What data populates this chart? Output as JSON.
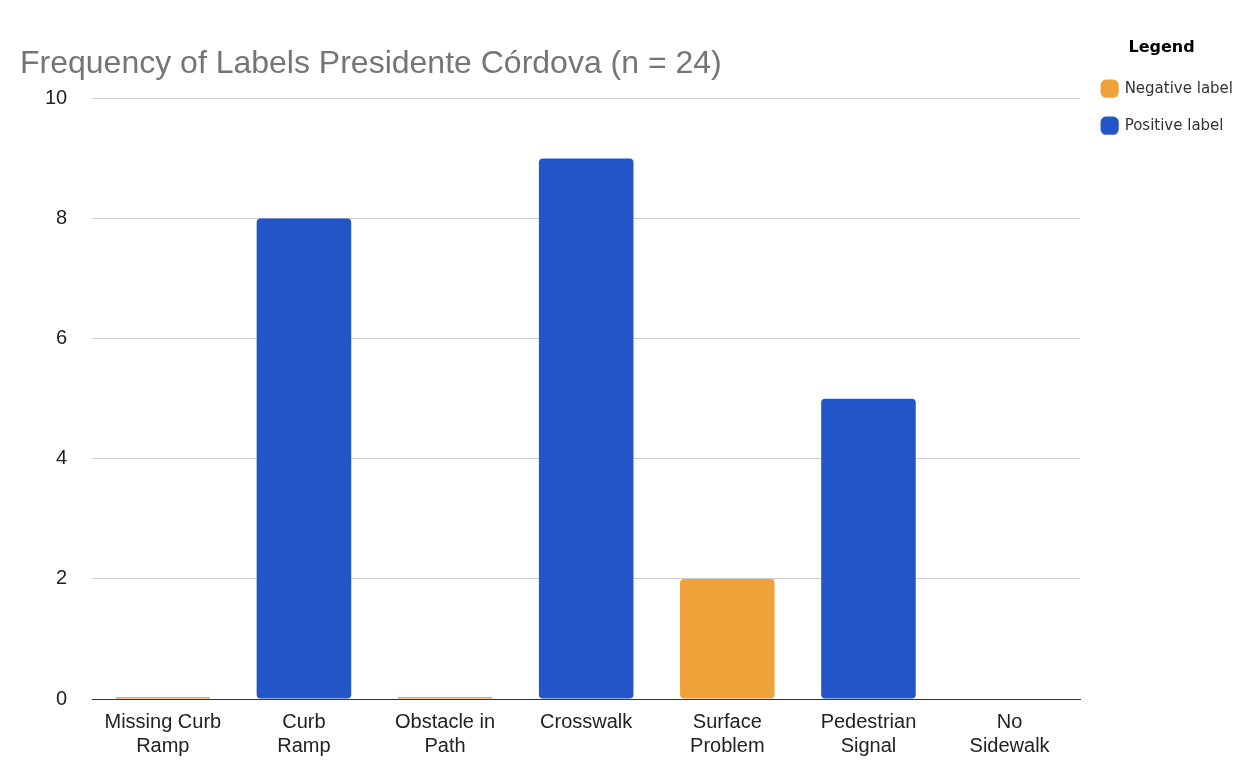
{
  "chart_data": {
    "type": "bar",
    "title": "Frequency of Labels Presidente Córdova (n = 24)",
    "legend_title": "Legend",
    "categories": [
      "Missing Curb Ramp",
      "Curb Ramp",
      "Obstacle in Path",
      "Crosswalk",
      "Surface Problem",
      "Pedestrian Signal",
      "No Sidewalk"
    ],
    "series": [
      {
        "name": "Negative label",
        "color": "#f0a23a",
        "values": [
          0,
          null,
          0,
          null,
          2,
          null,
          null
        ]
      },
      {
        "name": "Positive label",
        "color": "#2155c8",
        "values": [
          null,
          8,
          null,
          9,
          null,
          5,
          null
        ]
      }
    ],
    "ylim": [
      0,
      10
    ],
    "yticks": [
      0,
      2,
      4,
      6,
      8,
      10
    ],
    "grid": "y",
    "legend": "top right"
  }
}
